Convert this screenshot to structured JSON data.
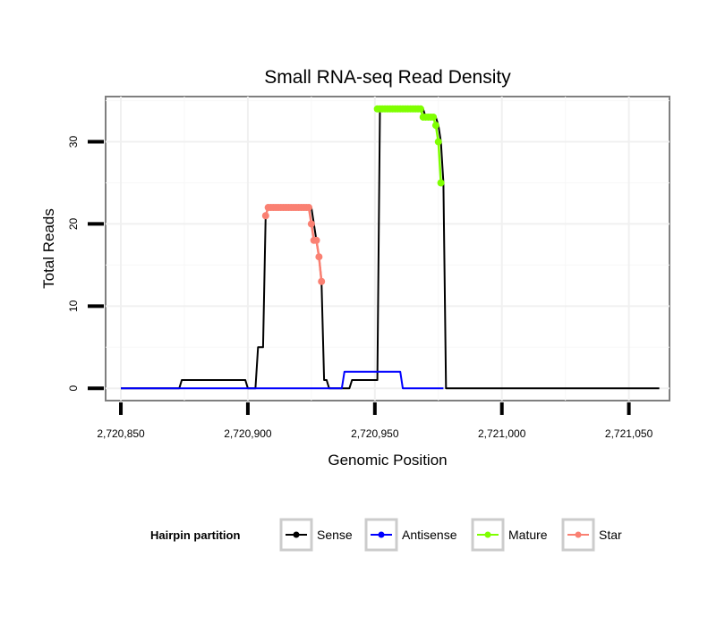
{
  "chart_data": {
    "type": "line",
    "title": "Small RNA-seq Read Density",
    "xlabel": "Genomic Position",
    "ylabel": "Total Reads",
    "xlim": [
      2720844,
      2721066
    ],
    "ylim": [
      -1.5,
      35.5
    ],
    "x_ticks": [
      2720850,
      2720900,
      2720950,
      2721000,
      2721050
    ],
    "x_tick_labels": [
      "2,720,850",
      "2,720,900",
      "2,720,950",
      "2,721,000",
      "2,721,050"
    ],
    "y_ticks": [
      0,
      10,
      20,
      30
    ],
    "y_tick_labels": [
      "0",
      "10",
      "20",
      "30"
    ],
    "grid": true,
    "legend": {
      "title": "Hairpin partition",
      "position": "bottom",
      "entries": [
        {
          "name": "Sense",
          "color": "#000000"
        },
        {
          "name": "Antisense",
          "color": "#0000ff"
        },
        {
          "name": "Mature",
          "color": "#7fff00"
        },
        {
          "name": "Star",
          "color": "#fa8072"
        }
      ]
    },
    "series": [
      {
        "name": "Sense",
        "color": "#000000",
        "style": "line",
        "x": [
          2720850,
          2720873,
          2720874,
          2720899,
          2720900,
          2720903,
          2720904,
          2720906,
          2720907,
          2720908,
          2720925,
          2720926,
          2720927,
          2720928,
          2720929,
          2720930,
          2720931,
          2720932,
          2720940,
          2720941,
          2720947,
          2720948,
          2720951,
          2720952,
          2720969,
          2720970,
          2720974,
          2720975,
          2720976,
          2720977,
          2720978,
          2721062
        ],
        "values": [
          0,
          0,
          1,
          1,
          0,
          0,
          5,
          5,
          21,
          22,
          22,
          20,
          18,
          16,
          13,
          1,
          1,
          0,
          0,
          1,
          1,
          1,
          1,
          34,
          34,
          33,
          33,
          32,
          30,
          25,
          0,
          0
        ]
      },
      {
        "name": "Antisense",
        "color": "#0000ff",
        "style": "line",
        "x": [
          2720850,
          2720937,
          2720938,
          2720960,
          2720961,
          2720977
        ],
        "values": [
          0,
          0,
          2,
          2,
          0,
          0
        ]
      },
      {
        "name": "Mature",
        "color": "#7fff00",
        "style": "line+points",
        "x": [
          2720951,
          2720952,
          2720953,
          2720954,
          2720955,
          2720956,
          2720957,
          2720958,
          2720959,
          2720960,
          2720961,
          2720962,
          2720963,
          2720964,
          2720965,
          2720966,
          2720967,
          2720968,
          2720969,
          2720970,
          2720971,
          2720972,
          2720973,
          2720974,
          2720975,
          2720976
        ],
        "values": [
          34,
          34,
          34,
          34,
          34,
          34,
          34,
          34,
          34,
          34,
          34,
          34,
          34,
          34,
          34,
          34,
          34,
          34,
          33,
          33,
          33,
          33,
          33,
          32,
          30,
          25
        ]
      },
      {
        "name": "Star",
        "color": "#fa8072",
        "style": "line+points",
        "x": [
          2720907,
          2720908,
          2720909,
          2720910,
          2720911,
          2720912,
          2720913,
          2720914,
          2720915,
          2720916,
          2720917,
          2720918,
          2720919,
          2720920,
          2720921,
          2720922,
          2720923,
          2720924,
          2720925,
          2720926,
          2720927,
          2720928,
          2720929
        ],
        "values": [
          21,
          22,
          22,
          22,
          22,
          22,
          22,
          22,
          22,
          22,
          22,
          22,
          22,
          22,
          22,
          22,
          22,
          22,
          20,
          18,
          18,
          16,
          13
        ]
      }
    ]
  }
}
